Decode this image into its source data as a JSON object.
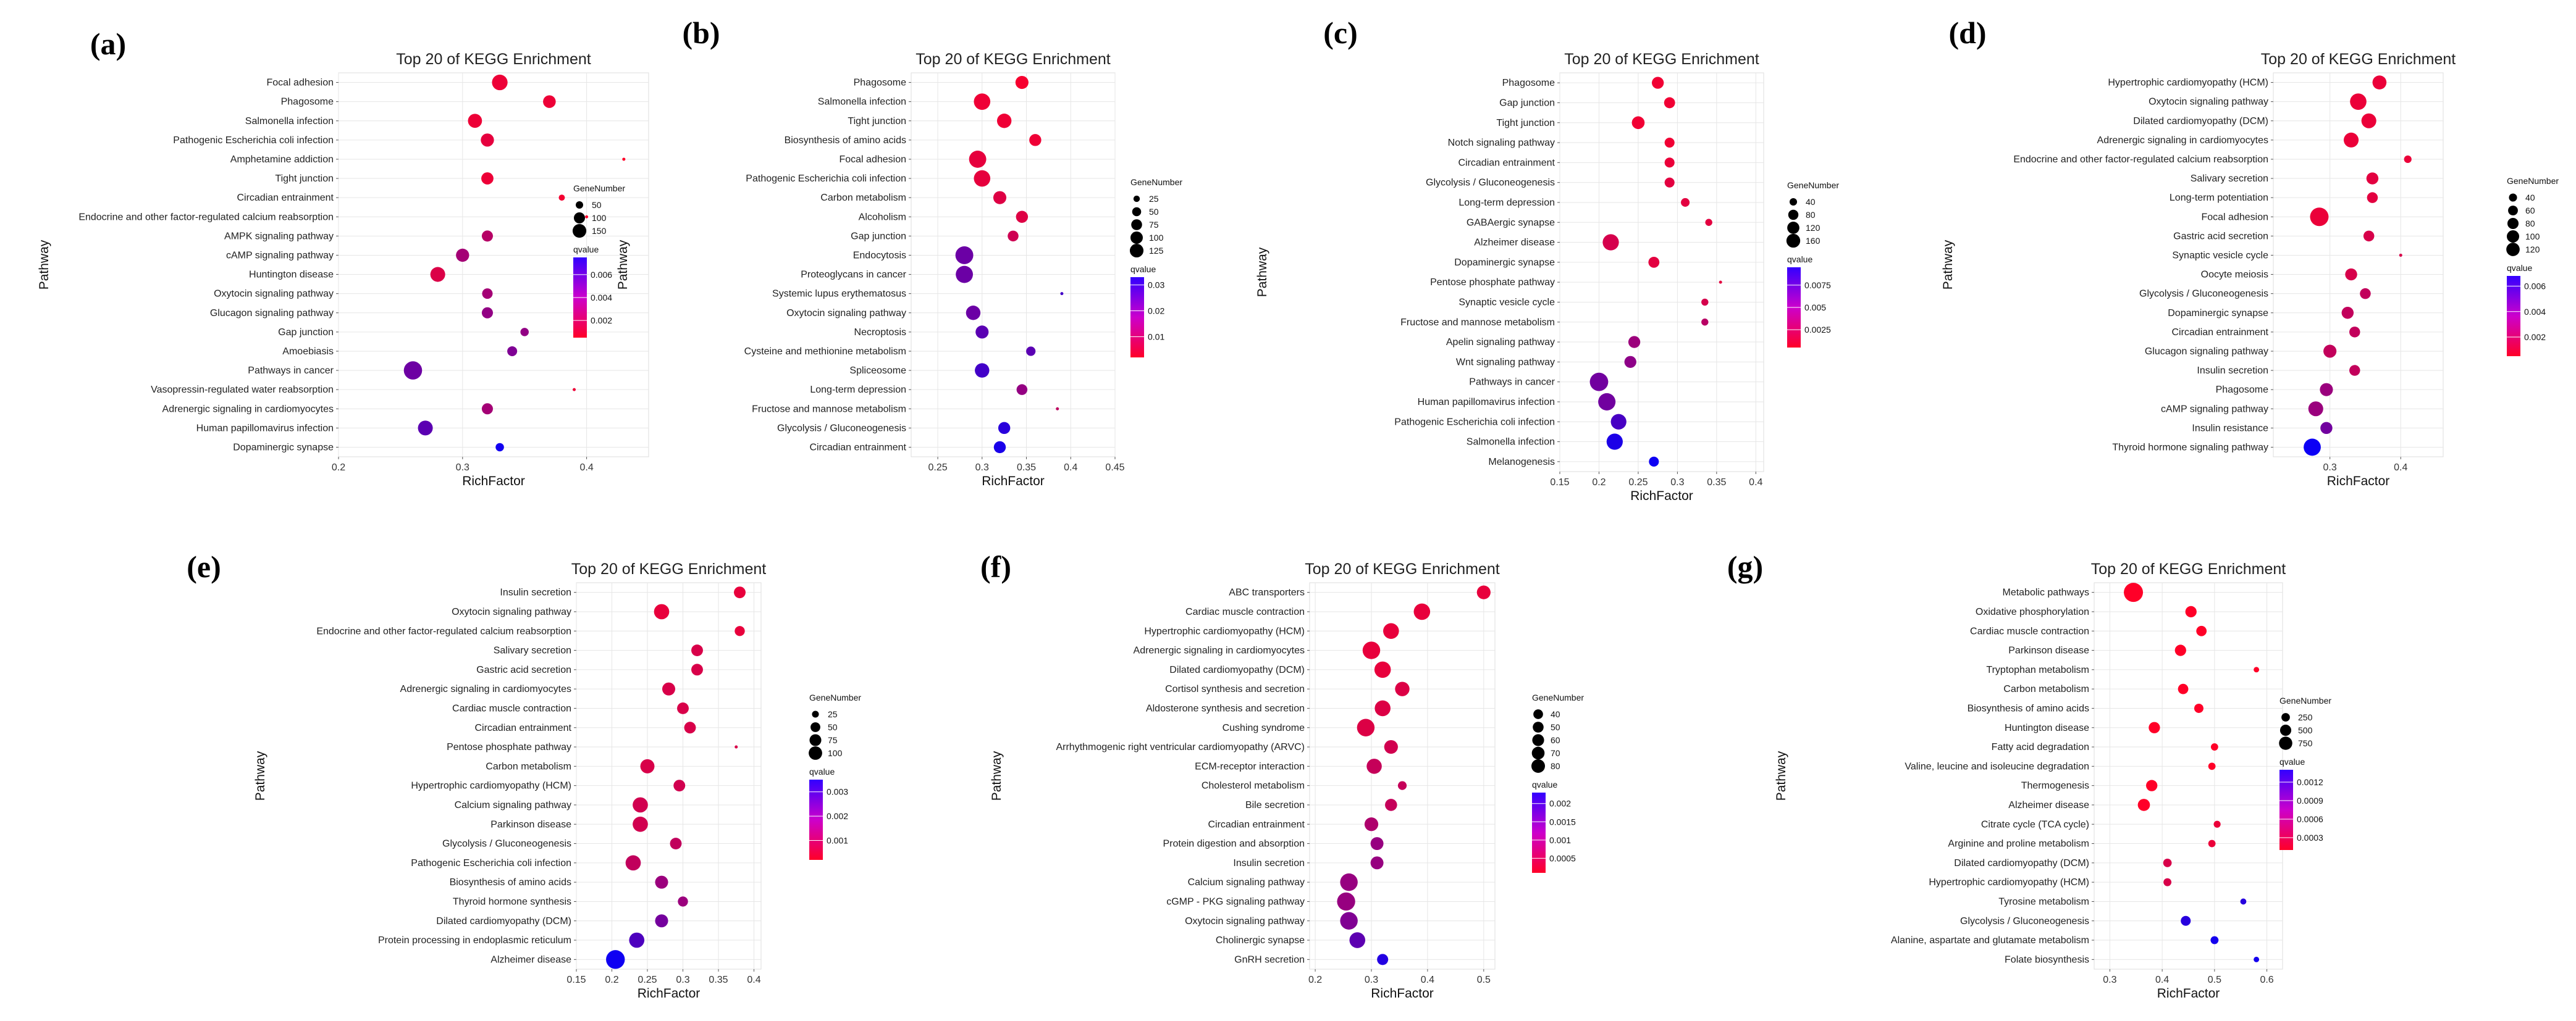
{
  "chart_data": [
    {
      "panel": "(a)",
      "type": "scatter",
      "title": "Top 20 of KEGG Enrichment",
      "xlabel": "RichFactor",
      "ylabel": "Pathway",
      "xlim": [
        0.2,
        0.45
      ],
      "xticks": [
        0.2,
        0.3,
        0.4
      ],
      "size_legend_title": "GeneNumber",
      "size_legend": [
        50,
        100,
        150
      ],
      "size_range": [
        25,
        165
      ],
      "color_legend_title": "qvalue",
      "color_legend_ticks": [
        0.006,
        0.004,
        0.002
      ],
      "qrange": [
        0.0005,
        0.0075
      ],
      "categories": [
        "Focal adhesion",
        "Phagosome",
        "Salmonella infection",
        "Pathogenic Escherichia coli infection",
        "Amphetamine addiction",
        "Tight junction",
        "Circadian entrainment",
        "Endocrine and other factor-regulated calcium reabsorption",
        "AMPK signaling pathway",
        "cAMP signaling pathway",
        "Huntington disease",
        "Oxytocin signaling pathway",
        "Glucagon signaling pathway",
        "Gap junction",
        "Amoebiasis",
        "Pathways in cancer",
        "Vasopressin-regulated water reabsorption",
        "Adrenergic signaling in cardiomyocytes",
        "Human papillomavirus infection",
        "Dopaminergic synapse"
      ],
      "x": [
        0.33,
        0.37,
        0.31,
        0.32,
        0.43,
        0.32,
        0.38,
        0.4,
        0.32,
        0.3,
        0.28,
        0.32,
        0.32,
        0.35,
        0.34,
        0.26,
        0.39,
        0.32,
        0.27,
        0.33
      ],
      "size": [
        110,
        75,
        90,
        80,
        15,
        70,
        30,
        25,
        60,
        80,
        100,
        55,
        60,
        40,
        50,
        150,
        20,
        60,
        100,
        40
      ],
      "qvalue": [
        0.001,
        0.001,
        0.001,
        0.0012,
        0.0005,
        0.001,
        0.0008,
        0.0006,
        0.0025,
        0.003,
        0.0015,
        0.003,
        0.0035,
        0.0035,
        0.004,
        0.0045,
        0.001,
        0.003,
        0.005,
        0.007
      ]
    },
    {
      "panel": "(b)",
      "type": "scatter",
      "title": "Top 20 of KEGG Enrichment",
      "xlabel": "RichFactor",
      "ylabel": "Pathway",
      "xlim": [
        0.22,
        0.45
      ],
      "xticks": [
        0.25,
        0.3,
        0.35,
        0.4,
        0.45
      ],
      "size_legend_title": "GeneNumber",
      "size_legend": [
        25,
        50,
        75,
        100,
        125
      ],
      "size_range": [
        10,
        140
      ],
      "color_legend_title": "qvalue",
      "color_legend_ticks": [
        0.03,
        0.02,
        0.01
      ],
      "qrange": [
        0.002,
        0.033
      ],
      "categories": [
        "Phagosome",
        "Salmonella infection",
        "Tight junction",
        "Biosynthesis of amino acids",
        "Focal adhesion",
        "Pathogenic Escherichia coli infection",
        "Carbon metabolism",
        "Alcoholism",
        "Gap junction",
        "Endocytosis",
        "Proteoglycans in cancer",
        "Systemic lupus erythematosus",
        "Oxytocin signaling pathway",
        "Necroptosis",
        "Cysteine and methionine metabolism",
        "Spliceosome",
        "Long-term depression",
        "Fructose and mannose metabolism",
        "Glycolysis / Gluconeogenesis",
        "Circadian entrainment"
      ],
      "x": [
        0.345,
        0.3,
        0.325,
        0.36,
        0.295,
        0.3,
        0.32,
        0.345,
        0.335,
        0.28,
        0.28,
        0.39,
        0.29,
        0.3,
        0.355,
        0.3,
        0.345,
        0.385,
        0.325,
        0.32
      ],
      "size": [
        60,
        100,
        75,
        50,
        110,
        100,
        60,
        50,
        40,
        120,
        110,
        10,
        75,
        60,
        30,
        75,
        40,
        10,
        50,
        50
      ],
      "qvalue": [
        0.003,
        0.004,
        0.004,
        0.004,
        0.005,
        0.005,
        0.006,
        0.006,
        0.008,
        0.02,
        0.02,
        0.025,
        0.02,
        0.022,
        0.022,
        0.025,
        0.015,
        0.01,
        0.028,
        0.03
      ]
    },
    {
      "panel": "(c)",
      "type": "scatter",
      "title": "Top 20 of KEGG Enrichment",
      "xlabel": "RichFactor",
      "ylabel": "Pathway",
      "xlim": [
        0.15,
        0.41
      ],
      "xticks": [
        0.15,
        0.2,
        0.25,
        0.3,
        0.35,
        0.4
      ],
      "size_legend_title": "GeneNumber",
      "size_legend": [
        40,
        80,
        120,
        160
      ],
      "size_range": [
        10,
        175
      ],
      "color_legend_title": "qvalue",
      "color_legend_ticks": [
        0.0075,
        0.005,
        0.0025
      ],
      "qrange": [
        0.0005,
        0.0095
      ],
      "categories": [
        "Phagosome",
        "Gap junction",
        "Tight junction",
        "Notch signaling pathway",
        "Circadian entrainment",
        "Glycolysis / Gluconeogenesis",
        "Long-term depression",
        "GABAergic synapse",
        "Alzheimer disease",
        "Dopaminergic synapse",
        "Pentose phosphate pathway",
        "Synaptic vesicle cycle",
        "Fructose and mannose metabolism",
        "Apelin signaling pathway",
        "Wnt signaling pathway",
        "Pathways in cancer",
        "Human papillomavirus infection",
        "Pathogenic Escherichia coli infection",
        "Salmonella infection",
        "Melanogenesis"
      ],
      "x": [
        0.275,
        0.29,
        0.25,
        0.29,
        0.29,
        0.29,
        0.31,
        0.34,
        0.215,
        0.27,
        0.355,
        0.335,
        0.335,
        0.245,
        0.24,
        0.2,
        0.21,
        0.225,
        0.22,
        0.27
      ],
      "size": [
        60,
        50,
        70,
        40,
        40,
        40,
        30,
        20,
        120,
        50,
        10,
        20,
        20,
        60,
        60,
        160,
        140,
        110,
        120,
        40
      ],
      "qvalue": [
        0.001,
        0.001,
        0.001,
        0.001,
        0.0012,
        0.0015,
        0.0015,
        0.0015,
        0.002,
        0.0015,
        0.0015,
        0.002,
        0.003,
        0.004,
        0.0045,
        0.0055,
        0.0055,
        0.007,
        0.0085,
        0.009
      ]
    },
    {
      "panel": "(d)",
      "type": "scatter",
      "title": "Top 20 of KEGG Enrichment",
      "xlabel": "RichFactor",
      "ylabel": "Pathway",
      "xlim": [
        0.22,
        0.46
      ],
      "xticks": [
        0.3,
        0.4
      ],
      "size_legend_title": "GeneNumber",
      "size_legend": [
        40,
        60,
        80,
        100,
        120
      ],
      "size_range": [
        10,
        140
      ],
      "color_legend_title": "qvalue",
      "color_legend_ticks": [
        0.006,
        0.004,
        0.002
      ],
      "qrange": [
        0.0005,
        0.0068
      ],
      "categories": [
        "Hypertrophic cardiomyopathy (HCM)",
        "Oxytocin signaling pathway",
        "Dilated cardiomyopathy (DCM)",
        "Adrenergic signaling in cardiomyocytes",
        "Endocrine and other factor-regulated calcium reabsorption",
        "Salivary secretion",
        "Long-term potentiation",
        "Focal adhesion",
        "Gastric acid secretion",
        "Synaptic vesicle cycle",
        "Oocyte meiosis",
        "Glycolysis / Gluconeogenesis",
        "Dopaminergic synapse",
        "Circadian entrainment",
        "Glucagon signaling pathway",
        "Insulin secretion",
        "Phagosome",
        "cAMP signaling pathway",
        "Insulin resistance",
        "Thyroid hormone signaling pathway"
      ],
      "x": [
        0.37,
        0.34,
        0.355,
        0.33,
        0.41,
        0.36,
        0.36,
        0.285,
        0.355,
        0.4,
        0.33,
        0.35,
        0.325,
        0.335,
        0.3,
        0.335,
        0.295,
        0.28,
        0.295,
        0.275
      ],
      "size": [
        70,
        100,
        80,
        80,
        20,
        50,
        40,
        130,
        40,
        10,
        50,
        40,
        50,
        40,
        60,
        40,
        60,
        80,
        50,
        110
      ],
      "qvalue": [
        0.001,
        0.001,
        0.001,
        0.001,
        0.001,
        0.0012,
        0.0012,
        0.001,
        0.0015,
        0.0015,
        0.0015,
        0.002,
        0.002,
        0.002,
        0.002,
        0.002,
        0.003,
        0.003,
        0.004,
        0.0065
      ]
    },
    {
      "panel": "(e)",
      "type": "scatter",
      "title": "Top 20 of KEGG Enrichment",
      "xlabel": "RichFactor",
      "ylabel": "Pathway",
      "xlim": [
        0.15,
        0.41
      ],
      "xticks": [
        0.15,
        0.2,
        0.25,
        0.3,
        0.35,
        0.4
      ],
      "size_legend_title": "GeneNumber",
      "size_legend": [
        25,
        50,
        75,
        100
      ],
      "size_range": [
        10,
        115
      ],
      "color_legend_title": "qvalue",
      "color_legend_ticks": [
        0.003,
        0.002,
        0.001
      ],
      "qrange": [
        0.0002,
        0.0035
      ],
      "categories": [
        "Insulin secretion",
        "Oxytocin signaling pathway",
        "Endocrine and other factor-regulated calcium reabsorption",
        "Salivary secretion",
        "Gastric acid secretion",
        "Adrenergic signaling in cardiomyocytes",
        "Cardiac muscle contraction",
        "Circadian entrainment",
        "Pentose phosphate pathway",
        "Carbon metabolism",
        "Hypertrophic cardiomyopathy (HCM)",
        "Calcium signaling pathway",
        "Parkinson disease",
        "Glycolysis / Gluconeogenesis",
        "Pathogenic Escherichia coli infection",
        "Biosynthesis of amino acids",
        "Thyroid hormone synthesis",
        "Dilated cardiomyopathy (DCM)",
        "Protein processing in endoplasmic reticulum",
        "Alzheimer disease"
      ],
      "x": [
        0.38,
        0.27,
        0.38,
        0.32,
        0.32,
        0.28,
        0.3,
        0.31,
        0.375,
        0.25,
        0.295,
        0.24,
        0.24,
        0.29,
        0.23,
        0.27,
        0.3,
        0.27,
        0.235,
        0.205
      ],
      "size": [
        40,
        70,
        30,
        40,
        40,
        50,
        40,
        40,
        10,
        60,
        40,
        70,
        70,
        40,
        70,
        50,
        30,
        50,
        70,
        110
      ],
      "qvalue": [
        0.0005,
        0.0005,
        0.0005,
        0.0007,
        0.0007,
        0.0007,
        0.0007,
        0.0007,
        0.0007,
        0.0007,
        0.0008,
        0.0008,
        0.0008,
        0.001,
        0.001,
        0.0015,
        0.0015,
        0.002,
        0.0025,
        0.0033
      ]
    },
    {
      "panel": "(f)",
      "type": "scatter",
      "title": "Top 20 of KEGG Enrichment",
      "xlabel": "RichFactor",
      "ylabel": "Pathway",
      "xlim": [
        0.19,
        0.52
      ],
      "xticks": [
        0.2,
        0.3,
        0.4,
        0.5
      ],
      "size_legend_title": "GeneNumber",
      "size_legend": [
        40,
        50,
        60,
        70,
        80
      ],
      "size_range": [
        10,
        90
      ],
      "color_legend_title": "qvalue",
      "color_legend_ticks": [
        0.002,
        0.0015,
        0.001,
        0.0005
      ],
      "qrange": [
        0.0001,
        0.0023
      ],
      "categories": [
        "ABC transporters",
        "Cardiac muscle contraction",
        "Hypertrophic cardiomyopathy (HCM)",
        "Adrenergic signaling in cardiomyocytes",
        "Dilated cardiomyopathy (DCM)",
        "Cortisol synthesis and secretion",
        "Aldosterone synthesis and secretion",
        "Cushing syndrome",
        "Arrhythmogenic right ventricular cardiomyopathy (ARVC)",
        "ECM-receptor interaction",
        "Cholesterol metabolism",
        "Bile secretion",
        "Circadian entrainment",
        "Protein digestion and absorption",
        "Insulin secretion",
        "Calcium signaling pathway",
        "cGMP - PKG signaling pathway",
        "Oxytocin signaling pathway",
        "Cholinergic synapse",
        "GnRH secretion"
      ],
      "x": [
        0.5,
        0.39,
        0.335,
        0.3,
        0.32,
        0.355,
        0.32,
        0.29,
        0.335,
        0.305,
        0.355,
        0.335,
        0.3,
        0.31,
        0.31,
        0.26,
        0.255,
        0.26,
        0.275,
        0.32
      ],
      "size": [
        45,
        65,
        60,
        75,
        65,
        50,
        60,
        75,
        45,
        55,
        20,
        35,
        45,
        40,
        40,
        75,
        80,
        75,
        60,
        30
      ],
      "qvalue": [
        0.0003,
        0.0003,
        0.0003,
        0.0003,
        0.0003,
        0.0004,
        0.0004,
        0.0004,
        0.0005,
        0.0006,
        0.0006,
        0.0006,
        0.0008,
        0.001,
        0.001,
        0.001,
        0.001,
        0.0012,
        0.0015,
        0.002
      ]
    },
    {
      "panel": "(g)",
      "type": "scatter",
      "title": "Top 20 of KEGG Enrichment",
      "xlabel": "RichFactor",
      "ylabel": "Pathway",
      "xlim": [
        0.27,
        0.63
      ],
      "xticks": [
        0.3,
        0.4,
        0.5,
        0.6
      ],
      "size_legend_title": "GeneNumber",
      "size_legend": [
        250,
        500,
        750
      ],
      "size_range": [
        20,
        900
      ],
      "color_legend_title": "qvalue",
      "color_legend_ticks": [
        0.0012,
        0.0009,
        0.0006,
        0.0003
      ],
      "qrange": [
        0.0001,
        0.0014
      ],
      "categories": [
        "Metabolic pathways",
        "Oxidative phosphorylation",
        "Cardiac muscle contraction",
        "Parkinson disease",
        "Tryptophan metabolism",
        "Carbon metabolism",
        "Biosynthesis of amino acids",
        "Huntington disease",
        "Fatty acid degradation",
        "Valine, leucine and isoleucine degradation",
        "Thermogenesis",
        "Alzheimer disease",
        "Citrate cycle (TCA cycle)",
        "Arginine and proline metabolism",
        "Dilated cardiomyopathy (DCM)",
        "Hypertrophic cardiomyopathy (HCM)",
        "Tyrosine metabolism",
        "Glycolysis / Gluconeogenesis",
        "Alanine, aspartate and glutamate metabolism",
        "Folate biosynthesis"
      ],
      "x": [
        0.345,
        0.455,
        0.475,
        0.435,
        0.58,
        0.44,
        0.47,
        0.385,
        0.5,
        0.495,
        0.38,
        0.365,
        0.505,
        0.495,
        0.41,
        0.41,
        0.555,
        0.445,
        0.5,
        0.58
      ],
      "size": [
        900,
        250,
        200,
        250,
        40,
        200,
        150,
        250,
        80,
        80,
        250,
        300,
        70,
        80,
        120,
        100,
        50,
        180,
        100,
        40
      ],
      "qvalue": [
        0.0001,
        0.0001,
        0.0001,
        0.0001,
        0.0001,
        0.0001,
        0.0001,
        0.0001,
        0.0001,
        0.0001,
        0.0001,
        0.0001,
        0.0002,
        0.0002,
        0.0003,
        0.0003,
        0.0012,
        0.0012,
        0.0013,
        0.0013
      ]
    }
  ]
}
